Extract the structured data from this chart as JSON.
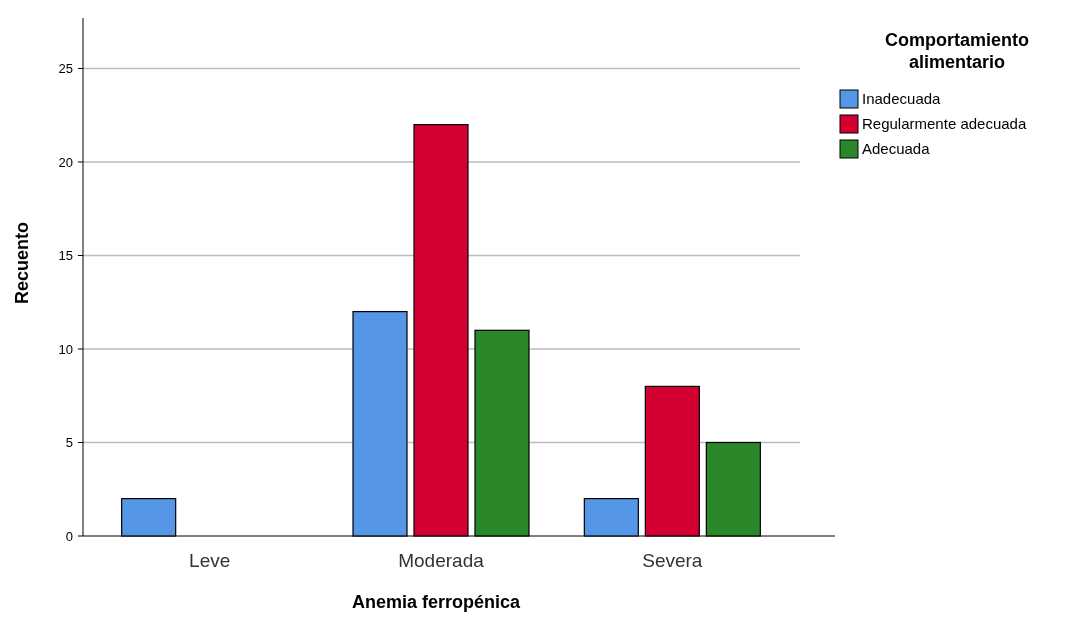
{
  "chart_data": {
    "type": "bar",
    "xlabel": "Anemia ferropénica",
    "ylabel": "Recuento",
    "legend_title": "Comportamiento alimentario",
    "categories": [
      "Leve",
      "Moderada",
      "Severa"
    ],
    "series": [
      {
        "name": "Inadecuada",
        "color": "#5596e6",
        "values": [
          2,
          12,
          2
        ]
      },
      {
        "name": "Regularmente adecuada",
        "color": "#d50032",
        "values": [
          null,
          22,
          8
        ]
      },
      {
        "name": "Adecuada",
        "color": "#2a872a",
        "values": [
          null,
          11,
          5
        ]
      }
    ],
    "ylim": [
      0,
      27.7
    ],
    "yticks": [
      0,
      5,
      10,
      15,
      20,
      25
    ],
    "grid": "y",
    "legend": "top right"
  }
}
